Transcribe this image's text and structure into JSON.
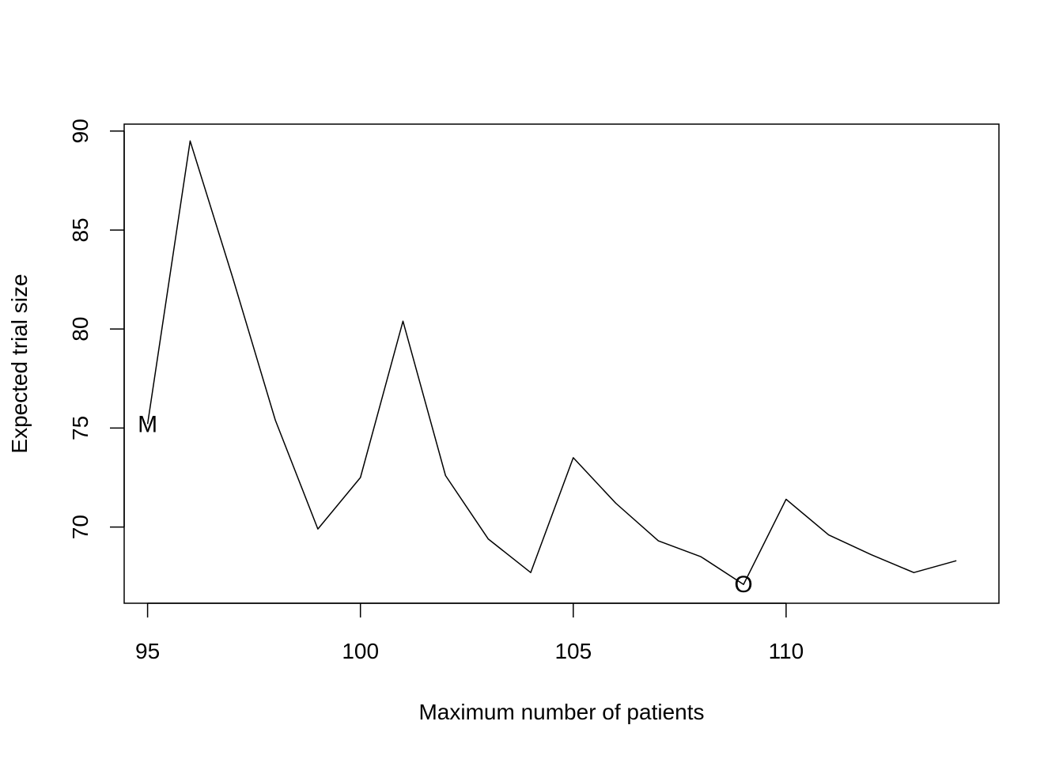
{
  "chart_data": {
    "type": "line",
    "title": "",
    "xlabel": "Maximum number of patients",
    "ylabel": "Expected trial size",
    "xlim": [
      94.45,
      115.0
    ],
    "ylim": [
      66.15,
      90.35
    ],
    "xticks": [
      95,
      100,
      105,
      110
    ],
    "yticks": [
      70,
      75,
      80,
      85,
      90
    ],
    "grid": false,
    "legend": "none",
    "line_color": "#000000",
    "series": [
      {
        "x": [
          95,
          96,
          97,
          98,
          99,
          100,
          101,
          102,
          103,
          104,
          105,
          106,
          107,
          108,
          109,
          110,
          111,
          112,
          113,
          114
        ],
        "values": [
          75.2,
          89.5,
          82.6,
          75.4,
          69.9,
          72.5,
          80.4,
          72.6,
          69.4,
          67.7,
          73.5,
          71.2,
          69.3,
          68.5,
          67.1,
          71.4,
          69.6,
          68.6,
          67.7,
          68.3
        ]
      }
    ],
    "annotations": [
      {
        "text": "M",
        "x": 95,
        "y": 75.2
      },
      {
        "text": "O",
        "x": 109,
        "y": 67.1
      }
    ]
  }
}
